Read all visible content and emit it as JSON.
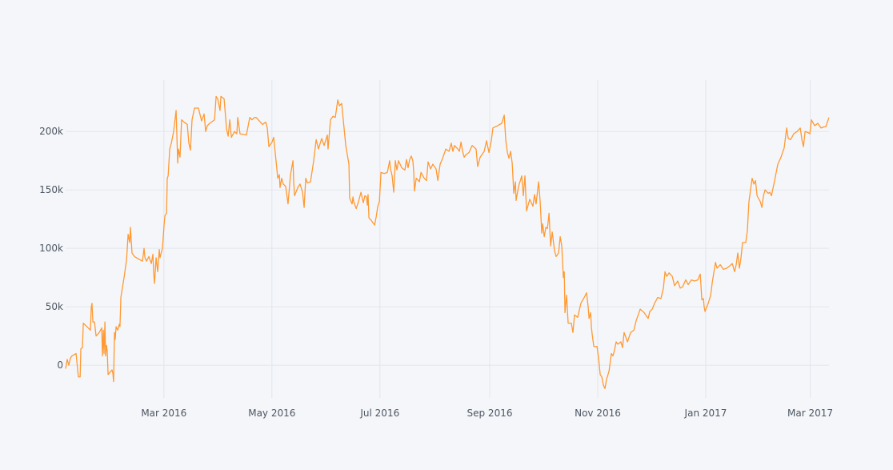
{
  "chart_data": {
    "type": "line",
    "color": "#ff9933",
    "grid": true,
    "xlim": [
      4.5,
      435.6
    ],
    "ylim": [
      -28000,
      244000
    ],
    "xticks": [
      {
        "value": 60,
        "label": "Mar 2016"
      },
      {
        "value": 121,
        "label": "May 2016"
      },
      {
        "value": 182,
        "label": "Jul 2016"
      },
      {
        "value": 244,
        "label": "Sep 2016"
      },
      {
        "value": 305,
        "label": "Nov 2016"
      },
      {
        "value": 366,
        "label": "Jan 2017"
      },
      {
        "value": 425,
        "label": "Mar 2017"
      }
    ],
    "yticks": [
      0,
      {
        "value": 50000,
        "label": "50k"
      },
      {
        "value": 100000,
        "label": "100k"
      },
      {
        "value": 150000,
        "label": "150k"
      },
      {
        "value": 200000,
        "label": "200k"
      }
    ],
    "x": [
      4.5,
      5.4,
      6.3,
      7.2,
      8.1,
      10.4,
      11.7,
      12.7,
      13.1,
      14.0,
      14.5,
      17.2,
      18.5,
      19.0,
      19.4,
      19.9,
      20.8,
      21.7,
      23.5,
      24.9,
      25.3,
      25.8,
      26.2,
      26.7,
      27.1,
      27.6,
      28.0,
      28.5,
      30.7,
      31.2,
      31.6,
      32.1,
      32.5,
      33.0,
      33.9,
      34.8,
      35.2,
      35.7,
      37.5,
      38.9,
      39.8,
      40.7,
      41.1,
      42.0,
      43.4,
      45.6,
      47.9,
      48.8,
      49.3,
      50.2,
      51.5,
      52.9,
      53.8,
      54.2,
      54.7,
      55.6,
      56.5,
      57.4,
      57.8,
      59.2,
      60.1,
      60.6,
      61.5,
      61.9,
      62.4,
      63.3,
      64.2,
      65.5,
      66.9,
      67.8,
      68.2,
      69.1,
      70.0,
      71.4,
      73.2,
      74.1,
      75.0,
      75.9,
      77.3,
      79.5,
      81.3,
      82.7,
      83.6,
      84.5,
      85.9,
      88.6,
      89.5,
      90.4,
      91.7,
      92.2,
      94.0,
      95.4,
      96.3,
      97.2,
      98.1,
      99.9,
      101.2,
      101.7,
      103.0,
      106.6,
      108.5,
      109.8,
      111.2,
      112.1,
      113.9,
      115.7,
      117.5,
      118.4,
      119.3,
      121.1,
      122.0,
      123.4,
      124.3,
      125.2,
      125.6,
      126.5,
      127.4,
      128.8,
      130.1,
      131.5,
      132.9,
      133.3,
      133.8,
      135.6,
      136.9,
      138.3,
      139.2,
      140.1,
      141.0,
      142.8,
      144.6,
      146.0,
      147.3,
      149.1,
      150.5,
      152.3,
      152.7,
      154.1,
      155.5,
      156.8,
      158.2,
      159.1,
      160.4,
      161.3,
      162.7,
      164.5,
      164.9,
      166.3,
      166.8,
      167.2,
      168.6,
      169.9,
      171.3,
      172.6,
      173.5,
      174.4,
      174.9,
      175.3,
      175.8,
      177.1,
      178.0,
      179.0,
      179.9,
      180.8,
      181.7,
      182.6,
      184.4,
      186.2,
      187.5,
      188.0,
      188.9,
      189.8,
      190.7,
      191.6,
      192.5,
      194.3,
      196.1,
      197.0,
      197.9,
      198.8,
      199.7,
      200.6,
      201.1,
      201.5,
      202.5,
      204.3,
      205.2,
      207.0,
      208.3,
      209.2,
      210.6,
      211.9,
      213.7,
      214.7,
      216.0,
      217.4,
      219.2,
      221.0,
      222.3,
      223.2,
      224.1,
      226.0,
      226.9,
      227.8,
      228.7,
      229.6,
      230.5,
      232.3,
      234.1,
      236.3,
      237.2,
      238.6,
      240.9,
      242.2,
      243.6,
      244.9,
      245.8,
      248.5,
      250.8,
      252.2,
      253.1,
      254.0,
      254.9,
      255.8,
      256.7,
      257.6,
      258.5,
      258.9,
      260.3,
      262.1,
      263.0,
      263.9,
      264.8,
      266.6,
      268.4,
      269.3,
      270.2,
      271.6,
      272.5,
      273.4,
      273.9,
      274.8,
      275.7,
      276.6,
      277.5,
      278.4,
      279.3,
      280.6,
      281.5,
      282.9,
      283.8,
      284.7,
      285.6,
      286.1,
      286.5,
      287.4,
      288.3,
      290.1,
      291.0,
      291.9,
      293.7,
      295.5,
      297.4,
      298.7,
      299.6,
      300.1,
      301.0,
      301.4,
      301.9,
      302.8,
      304.6,
      305.5,
      306.4,
      307.3,
      308.2,
      309.1,
      310.0,
      311.4,
      312.7,
      313.6,
      314.5,
      315.4,
      316.3,
      318.1,
      319.0,
      319.9,
      321.8,
      323.6,
      325.4,
      326.7,
      329.0,
      331.2,
      333.5,
      334.4,
      335.8,
      337.1,
      338.9,
      340.7,
      342.1,
      343.0,
      343.9,
      345.3,
      347.1,
      348.4,
      350.2,
      351.6,
      352.9,
      354.7,
      356.1,
      357.9,
      359.7,
      361.5,
      362.9,
      363.8,
      364.7,
      365.1,
      365.6,
      367.4,
      368.8,
      369.7,
      371.5,
      372.4,
      374.2,
      376.0,
      377.8,
      379.6,
      381.0,
      382.3,
      383.2,
      384.1,
      385.0,
      385.9,
      386.8,
      388.6,
      389.5,
      390.4,
      391.3,
      392.2,
      393.2,
      394.1,
      395.0,
      396.8,
      397.7,
      398.6,
      399.5,
      401.3,
      402.2,
      403.1,
      404.9,
      406.7,
      408.5,
      410.3,
      411.7,
      412.6,
      413.9,
      415.7,
      417.6,
      419.4,
      420.3,
      421.2,
      422.1,
      423.9,
      424.8,
      425.7,
      427.5,
      429.3,
      431.1,
      432.9,
      433.8,
      435.6
    ],
    "values": [
      -3000,
      5000,
      0,
      6000,
      8000,
      10000,
      -10000,
      -10000,
      14000,
      15000,
      36000,
      32000,
      30000,
      50000,
      53000,
      37000,
      37000,
      25000,
      28000,
      32000,
      8000,
      30000,
      10000,
      37000,
      8000,
      17000,
      12000,
      -8000,
      -4000,
      -7000,
      -14000,
      28000,
      22000,
      33000,
      30000,
      35000,
      33000,
      58000,
      75000,
      90000,
      112000,
      105000,
      118000,
      96000,
      93000,
      91000,
      89000,
      100000,
      92000,
      89000,
      93000,
      87000,
      95000,
      80000,
      70000,
      92000,
      80000,
      99000,
      92000,
      100000,
      120000,
      128000,
      130000,
      160000,
      162000,
      185000,
      190000,
      200000,
      218000,
      173000,
      185000,
      178000,
      210000,
      208000,
      206000,
      190000,
      184000,
      210000,
      220000,
      220000,
      209000,
      215000,
      200000,
      205000,
      207000,
      210000,
      230000,
      228000,
      218000,
      230000,
      228000,
      202000,
      196000,
      210000,
      195000,
      200000,
      198000,
      212000,
      198000,
      197000,
      212000,
      210000,
      212000,
      212000,
      209000,
      206000,
      208000,
      203000,
      187000,
      191000,
      195000,
      174000,
      160000,
      163000,
      152000,
      160000,
      155000,
      153000,
      138000,
      163000,
      175000,
      157000,
      145000,
      152000,
      155000,
      148000,
      135000,
      160000,
      156000,
      157000,
      175000,
      193000,
      185000,
      194000,
      188000,
      197000,
      185000,
      210000,
      213000,
      212000,
      227000,
      222000,
      224000,
      210000,
      188000,
      172000,
      143000,
      138000,
      144000,
      140000,
      134000,
      140000,
      148000,
      139000,
      145000,
      144000,
      137000,
      146000,
      126000,
      124000,
      122000,
      120000,
      127000,
      136000,
      140000,
      165000,
      164000,
      165000,
      175000,
      168000,
      162000,
      148000,
      175000,
      167000,
      175000,
      169000,
      167000,
      176000,
      169000,
      176000,
      179000,
      175000,
      165000,
      149000,
      160000,
      157000,
      165000,
      160000,
      158000,
      174000,
      168000,
      172000,
      168000,
      158000,
      172000,
      177000,
      185000,
      183000,
      190000,
      183000,
      188000,
      185000,
      183000,
      191000,
      183000,
      178000,
      180000,
      182000,
      188000,
      185000,
      170000,
      178000,
      183000,
      192000,
      182000,
      192000,
      203000,
      205000,
      207000,
      214000,
      192000,
      182000,
      177000,
      183000,
      173000,
      147000,
      157000,
      141000,
      153000,
      162000,
      145000,
      162000,
      132000,
      142000,
      136000,
      146000,
      138000,
      157000,
      140000,
      113000,
      121000,
      110000,
      118000,
      117000,
      130000,
      102000,
      114000,
      98000,
      93000,
      96000,
      110000,
      102000,
      75000,
      80000,
      45000,
      60000,
      36000,
      36000,
      28000,
      43000,
      41000,
      53000,
      58000,
      62000,
      50000,
      40000,
      45000,
      33000,
      26000,
      16000,
      16000,
      6000,
      -8000,
      -10000,
      -17000,
      -20000,
      -12000,
      -5000,
      10000,
      8000,
      13000,
      20000,
      18000,
      20000,
      15000,
      28000,
      20000,
      28000,
      30000,
      38000,
      48000,
      45000,
      40000,
      46000,
      48000,
      53000,
      58000,
      57000,
      66000,
      80000,
      76000,
      79000,
      76000,
      68000,
      72000,
      66000,
      67000,
      73000,
      69000,
      73000,
      72000,
      73000,
      78000,
      56000,
      57000,
      50000,
      46000,
      53000,
      60000,
      71000,
      88000,
      83000,
      86000,
      82000,
      83000,
      85000,
      87000,
      80000,
      86000,
      96000,
      83000,
      92000,
      105000,
      105000,
      115000,
      140000,
      150000,
      160000,
      155000,
      158000,
      145000,
      140000,
      135000,
      145000,
      150000,
      147000,
      148000,
      145000,
      158000,
      172000,
      178000,
      186000,
      203000,
      194000,
      193000,
      198000,
      200000,
      203000,
      193000,
      187000,
      200000,
      199000,
      198000,
      210000,
      205000,
      207000,
      203000,
      204000,
      204000,
      212000
    ]
  }
}
